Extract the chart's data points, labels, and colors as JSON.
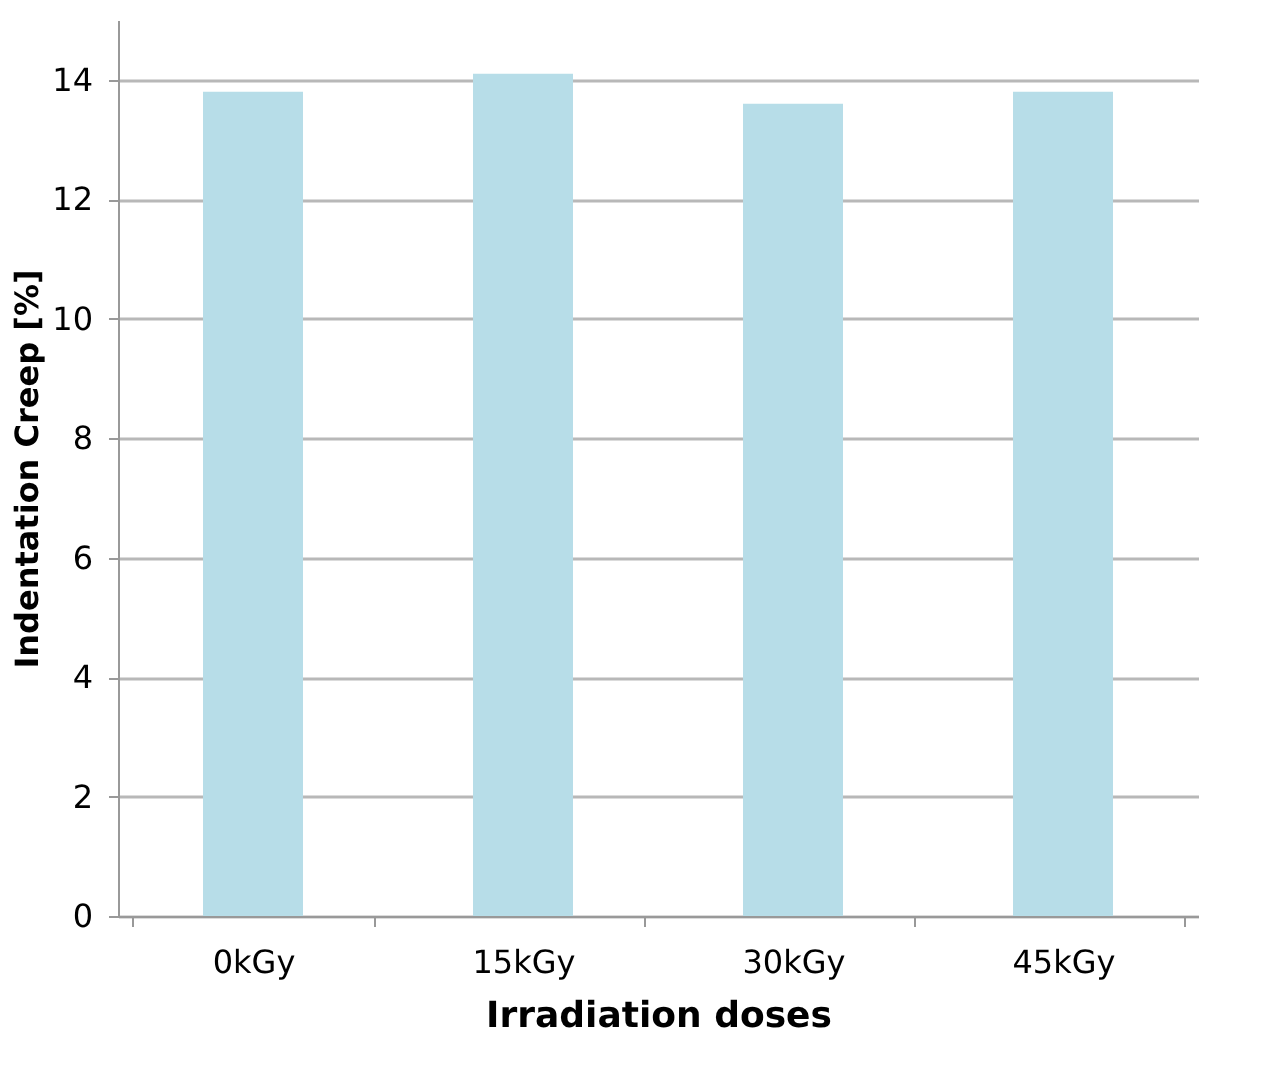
{
  "chart_data": {
    "type": "bar",
    "xlabel": "Irradiation doses",
    "ylabel": "Indentation Creep [%]",
    "categories": [
      "0kGy",
      "15kGy",
      "30kGy",
      "45kGy"
    ],
    "values": [
      13.8,
      14.1,
      13.6,
      13.8
    ],
    "color": "#b7dde8",
    "ylim": [
      0,
      15
    ],
    "yticks": [
      0,
      2,
      4,
      6,
      8,
      10,
      12,
      14
    ],
    "grid": "y"
  }
}
